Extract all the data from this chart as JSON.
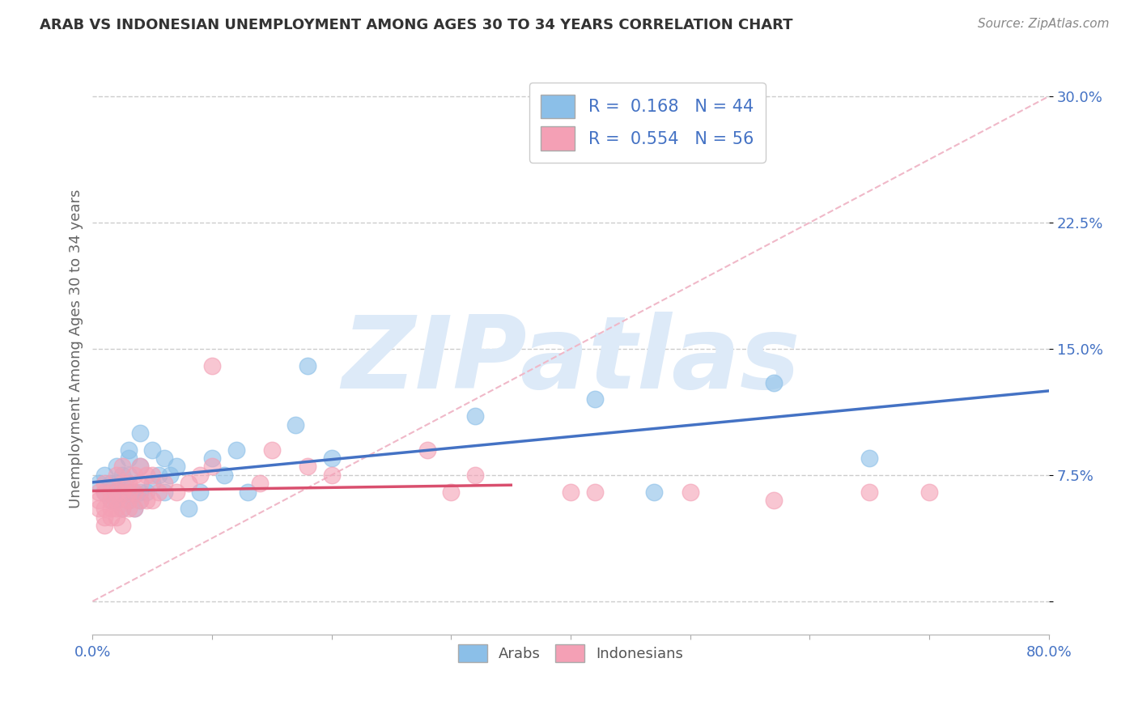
{
  "title": "ARAB VS INDONESIAN UNEMPLOYMENT AMONG AGES 30 TO 34 YEARS CORRELATION CHART",
  "source": "Source: ZipAtlas.com",
  "ylabel": "Unemployment Among Ages 30 to 34 years",
  "xlim": [
    0.0,
    0.8
  ],
  "ylim": [
    -0.02,
    0.32
  ],
  "yticks": [
    0.0,
    0.075,
    0.15,
    0.225,
    0.3
  ],
  "ytick_labels": [
    "",
    "7.5%",
    "15.0%",
    "22.5%",
    "30.0%"
  ],
  "xticks": [
    0.0,
    0.1,
    0.2,
    0.3,
    0.4,
    0.5,
    0.6,
    0.7,
    0.8
  ],
  "xtick_labels": [
    "0.0%",
    "",
    "",
    "",
    "",
    "",
    "",
    "",
    "80.0%"
  ],
  "arab_R": 0.168,
  "arab_N": 44,
  "indo_R": 0.554,
  "indo_N": 56,
  "arab_color": "#8BBFE8",
  "indo_color": "#F4A0B5",
  "arab_line_color": "#4472C4",
  "indo_line_color": "#D94F6E",
  "ref_line_color": "#F0B8C8",
  "watermark": "ZIPatlas",
  "watermark_color": "#DDEAF8",
  "arab_x": [
    0.005,
    0.01,
    0.01,
    0.015,
    0.015,
    0.02,
    0.02,
    0.02,
    0.025,
    0.025,
    0.025,
    0.03,
    0.03,
    0.03,
    0.03,
    0.03,
    0.035,
    0.035,
    0.04,
    0.04,
    0.04,
    0.04,
    0.045,
    0.05,
    0.05,
    0.055,
    0.06,
    0.06,
    0.065,
    0.07,
    0.08,
    0.09,
    0.1,
    0.11,
    0.12,
    0.13,
    0.17,
    0.18,
    0.2,
    0.32,
    0.42,
    0.47,
    0.57,
    0.65
  ],
  "arab_y": [
    0.07,
    0.065,
    0.075,
    0.06,
    0.07,
    0.06,
    0.07,
    0.08,
    0.055,
    0.065,
    0.075,
    0.06,
    0.065,
    0.075,
    0.085,
    0.09,
    0.055,
    0.065,
    0.06,
    0.065,
    0.08,
    0.1,
    0.065,
    0.07,
    0.09,
    0.075,
    0.065,
    0.085,
    0.075,
    0.08,
    0.055,
    0.065,
    0.085,
    0.075,
    0.09,
    0.065,
    0.105,
    0.14,
    0.085,
    0.11,
    0.12,
    0.065,
    0.13,
    0.085
  ],
  "indo_x": [
    0.005,
    0.005,
    0.005,
    0.01,
    0.01,
    0.01,
    0.01,
    0.01,
    0.015,
    0.015,
    0.015,
    0.015,
    0.02,
    0.02,
    0.02,
    0.02,
    0.02,
    0.025,
    0.025,
    0.025,
    0.025,
    0.025,
    0.03,
    0.03,
    0.03,
    0.03,
    0.035,
    0.035,
    0.035,
    0.04,
    0.04,
    0.04,
    0.045,
    0.045,
    0.05,
    0.05,
    0.055,
    0.06,
    0.07,
    0.08,
    0.09,
    0.1,
    0.1,
    0.14,
    0.15,
    0.18,
    0.2,
    0.28,
    0.3,
    0.32,
    0.4,
    0.42,
    0.5,
    0.57,
    0.65,
    0.7
  ],
  "indo_y": [
    0.055,
    0.06,
    0.065,
    0.045,
    0.05,
    0.055,
    0.065,
    0.07,
    0.05,
    0.055,
    0.06,
    0.065,
    0.05,
    0.055,
    0.06,
    0.065,
    0.075,
    0.045,
    0.055,
    0.065,
    0.07,
    0.08,
    0.055,
    0.06,
    0.065,
    0.07,
    0.055,
    0.065,
    0.075,
    0.06,
    0.07,
    0.08,
    0.06,
    0.075,
    0.06,
    0.075,
    0.065,
    0.07,
    0.065,
    0.07,
    0.075,
    0.08,
    0.14,
    0.07,
    0.09,
    0.08,
    0.075,
    0.09,
    0.065,
    0.075,
    0.065,
    0.065,
    0.065,
    0.06,
    0.065,
    0.065
  ],
  "title_fontsize": 13,
  "source_fontsize": 11,
  "tick_fontsize": 13,
  "ylabel_fontsize": 13
}
